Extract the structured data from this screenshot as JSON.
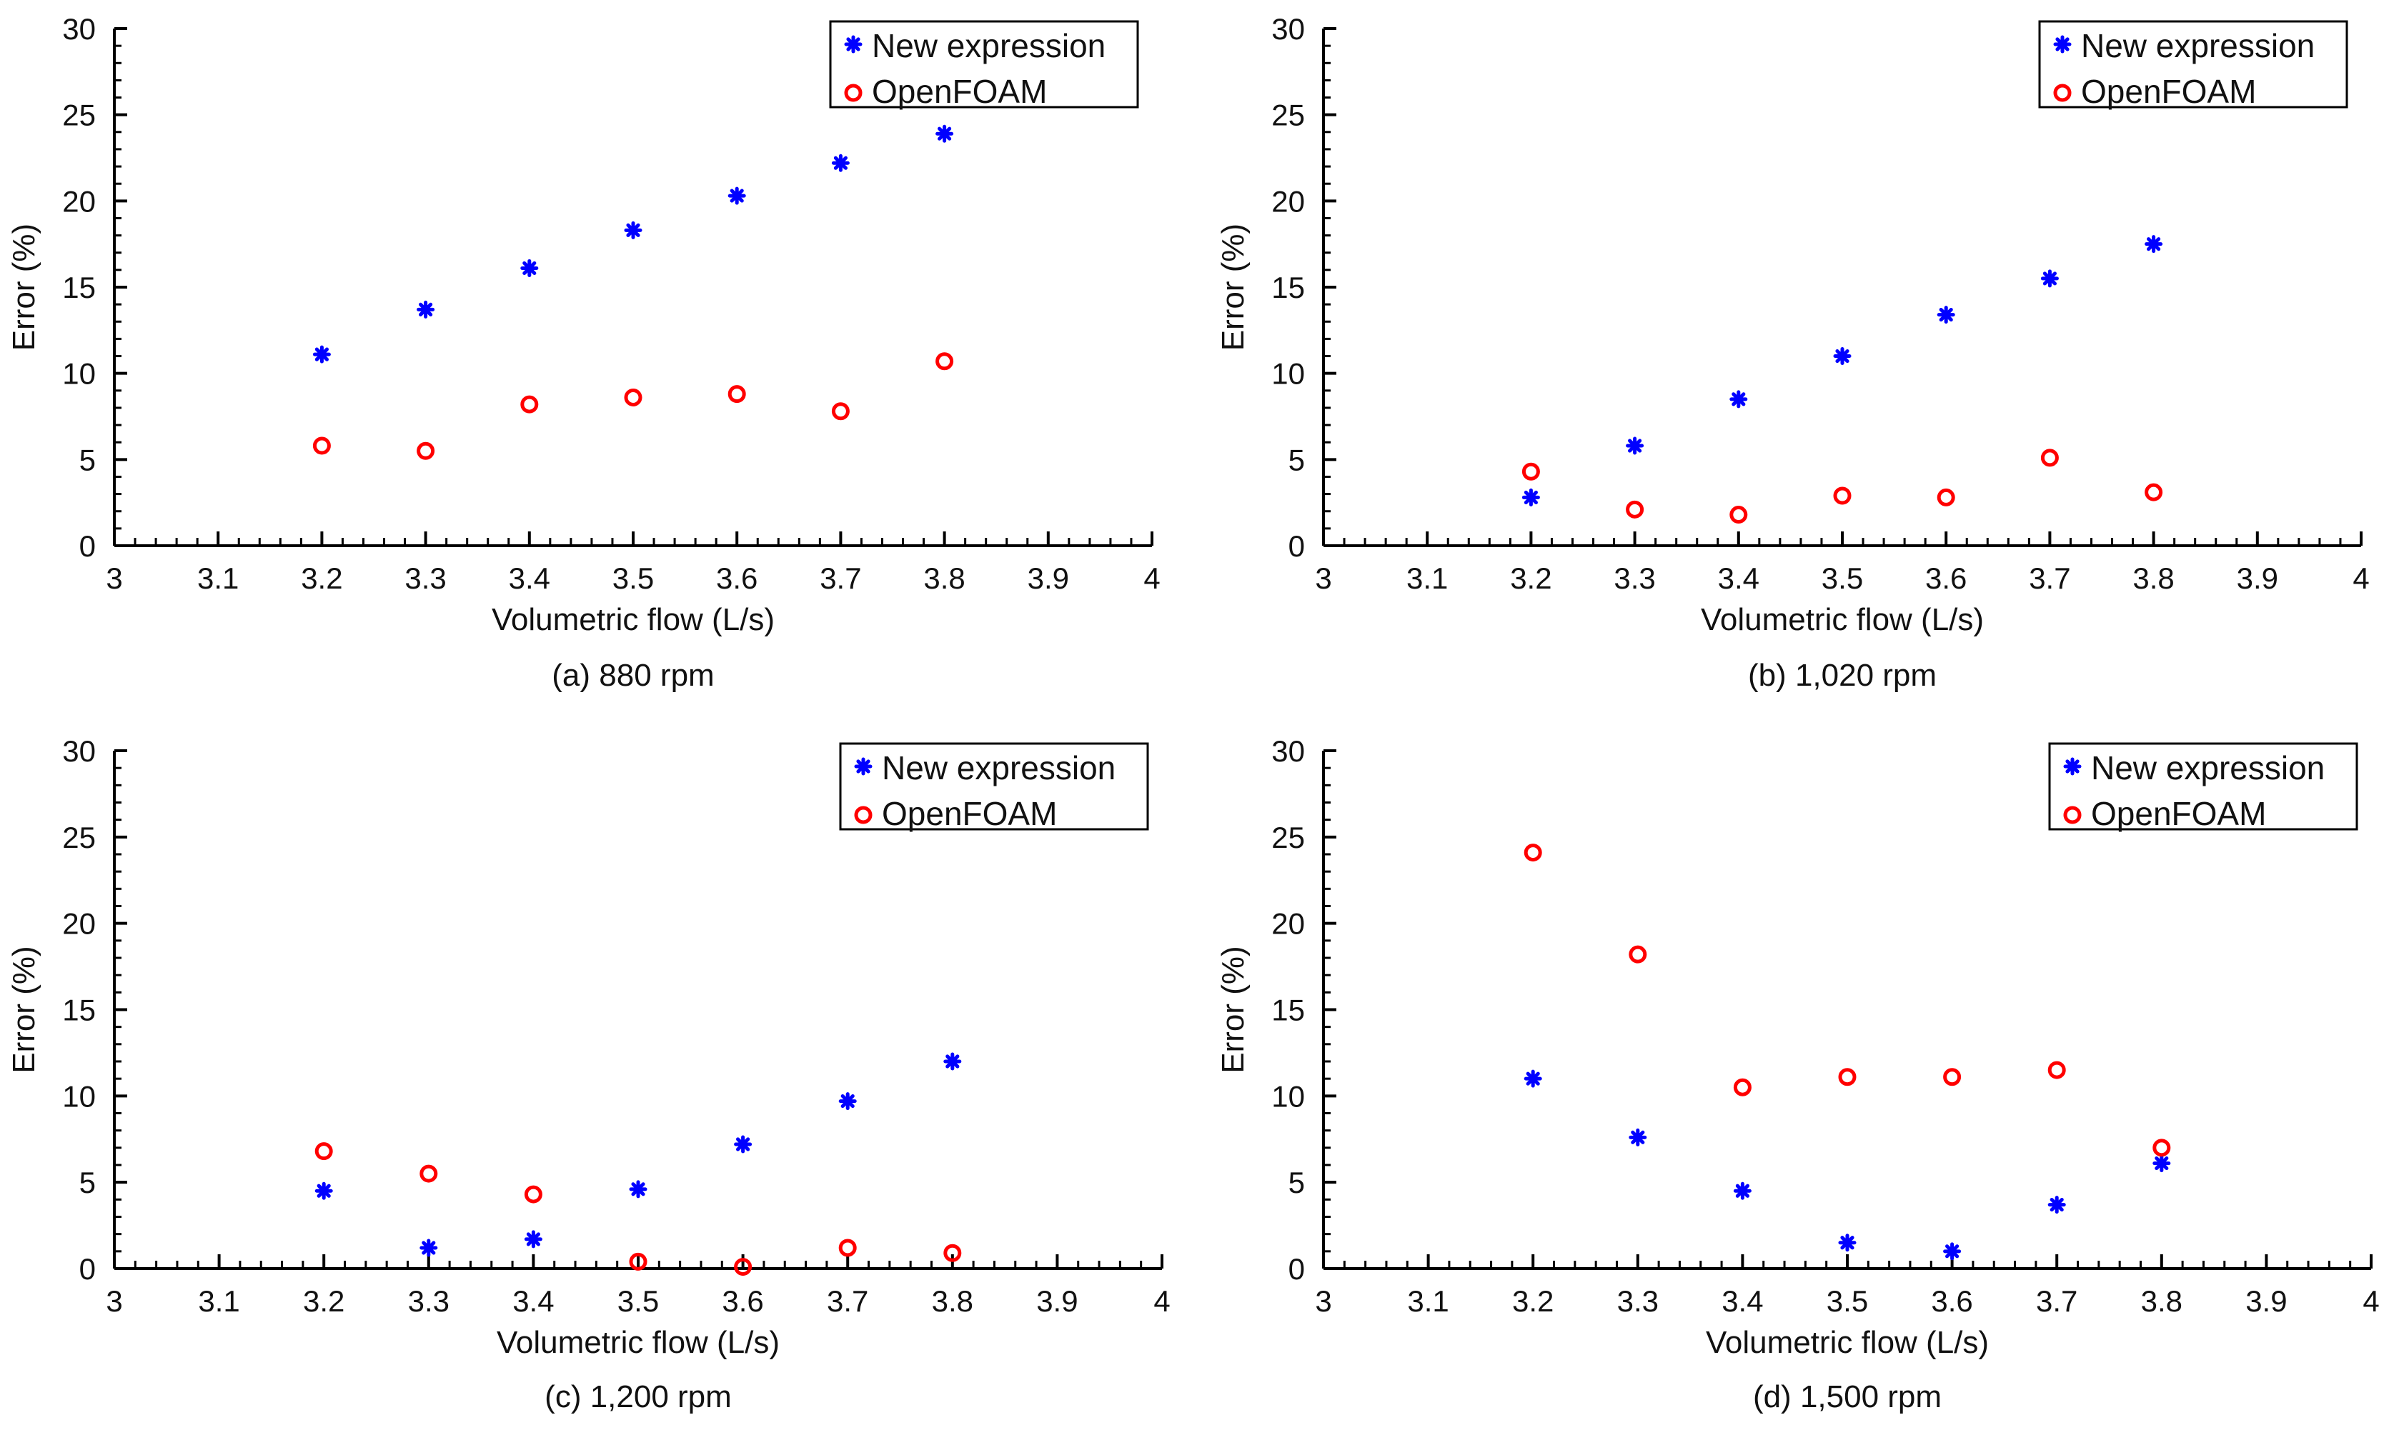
{
  "colors": {
    "new_expression": "#0000ff",
    "openfoam": "#ff0000",
    "axis": "#000000",
    "background": "#ffffff"
  },
  "chart_data": [
    {
      "type": "scatter",
      "caption": "(a) 880 rpm",
      "xlabel": "Volumetric flow (L/s)",
      "ylabel": "Error (%)",
      "xlim": [
        3,
        4
      ],
      "ylim": [
        0,
        30
      ],
      "xticks": [
        "3",
        "3.1",
        "3.2",
        "3.3",
        "3.4",
        "3.5",
        "3.6",
        "3.7",
        "3.8",
        "3.9",
        "4"
      ],
      "yticks": [
        "0",
        "5",
        "10",
        "15",
        "20",
        "25",
        "30"
      ],
      "legend_position": "top-right",
      "series": [
        {
          "name": "New expression",
          "marker": "asterisk",
          "x": [
            3.2,
            3.3,
            3.4,
            3.5,
            3.6,
            3.7,
            3.8
          ],
          "y": [
            11.1,
            13.7,
            16.1,
            18.3,
            20.3,
            22.2,
            23.9
          ]
        },
        {
          "name": "OpenFOAM",
          "marker": "circle",
          "x": [
            3.2,
            3.3,
            3.4,
            3.5,
            3.6,
            3.7,
            3.8
          ],
          "y": [
            5.8,
            5.5,
            8.2,
            8.6,
            8.8,
            7.8,
            10.7
          ]
        }
      ]
    },
    {
      "type": "scatter",
      "caption": "(b) 1,020 rpm",
      "xlabel": "Volumetric flow (L/s)",
      "ylabel": "Error (%)",
      "xlim": [
        3,
        4
      ],
      "ylim": [
        0,
        30
      ],
      "xticks": [
        "3",
        "3.1",
        "3.2",
        "3.3",
        "3.4",
        "3.5",
        "3.6",
        "3.7",
        "3.8",
        "3.9",
        "4"
      ],
      "yticks": [
        "0",
        "5",
        "10",
        "15",
        "20",
        "25",
        "30"
      ],
      "legend_position": "top-right",
      "series": [
        {
          "name": "New expression",
          "marker": "asterisk",
          "x": [
            3.2,
            3.3,
            3.4,
            3.5,
            3.6,
            3.7,
            3.8
          ],
          "y": [
            2.8,
            5.8,
            8.5,
            11.0,
            13.4,
            15.5,
            17.5
          ]
        },
        {
          "name": "OpenFOAM",
          "marker": "circle",
          "x": [
            3.2,
            3.3,
            3.4,
            3.5,
            3.6,
            3.7,
            3.8
          ],
          "y": [
            4.3,
            2.1,
            1.8,
            2.9,
            2.8,
            5.1,
            3.1
          ]
        }
      ]
    },
    {
      "type": "scatter",
      "caption": "(c) 1,200 rpm",
      "xlabel": "Volumetric flow (L/s)",
      "ylabel": "Error (%)",
      "xlim": [
        3,
        4
      ],
      "ylim": [
        0,
        30
      ],
      "xticks": [
        "3",
        "3.1",
        "3.2",
        "3.3",
        "3.4",
        "3.5",
        "3.6",
        "3.7",
        "3.8",
        "3.9",
        "4"
      ],
      "yticks": [
        "0",
        "5",
        "10",
        "15",
        "20",
        "25",
        "30"
      ],
      "legend_position": "top-right",
      "series": [
        {
          "name": "New expression",
          "marker": "asterisk",
          "x": [
            3.2,
            3.3,
            3.4,
            3.5,
            3.6,
            3.7,
            3.8
          ],
          "y": [
            4.5,
            1.2,
            1.7,
            4.6,
            7.2,
            9.7,
            12.0
          ]
        },
        {
          "name": "OpenFOAM",
          "marker": "circle",
          "x": [
            3.2,
            3.3,
            3.4,
            3.5,
            3.6,
            3.7,
            3.8
          ],
          "y": [
            6.8,
            5.5,
            4.3,
            0.4,
            0.1,
            1.2,
            0.9
          ]
        }
      ]
    },
    {
      "type": "scatter",
      "caption": "(d) 1,500 rpm",
      "xlabel": "Volumetric flow (L/s)",
      "ylabel": "Error (%)",
      "xlim": [
        3,
        4
      ],
      "ylim": [
        0,
        30
      ],
      "xticks": [
        "3",
        "3.1",
        "3.2",
        "3.3",
        "3.4",
        "3.5",
        "3.6",
        "3.7",
        "3.8",
        "3.9",
        "4"
      ],
      "yticks": [
        "0",
        "5",
        "10",
        "15",
        "20",
        "25",
        "30"
      ],
      "legend_position": "top-right",
      "series": [
        {
          "name": "New expression",
          "marker": "asterisk",
          "x": [
            3.2,
            3.3,
            3.4,
            3.5,
            3.6,
            3.7,
            3.8
          ],
          "y": [
            11.0,
            7.6,
            4.5,
            1.5,
            1.0,
            3.7,
            6.1
          ]
        },
        {
          "name": "OpenFOAM",
          "marker": "circle",
          "x": [
            3.2,
            3.3,
            3.4,
            3.5,
            3.6,
            3.7,
            3.8
          ],
          "y": [
            24.1,
            18.2,
            10.5,
            11.1,
            11.1,
            11.5,
            7.0
          ]
        }
      ]
    }
  ]
}
